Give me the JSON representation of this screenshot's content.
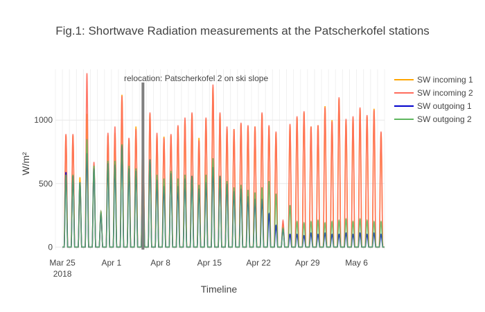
{
  "chart_data": {
    "type": "line",
    "title": "Fig.1: Shortwave Radiation measurements at the Patscherkofel stations",
    "xlabel": "Timeline",
    "ylabel": "W/m²",
    "x_start": "2018-03-25",
    "x_end": "2018-05-10",
    "xlim": [
      "2018-03-24",
      "2018-05-10"
    ],
    "ylim": [
      -20,
      1400
    ],
    "x_ticks": [
      {
        "date": "2018-03-25",
        "label": "Mar 25",
        "sublabel": "2018"
      },
      {
        "date": "2018-04-01",
        "label": "Apr 1",
        "sublabel": ""
      },
      {
        "date": "2018-04-08",
        "label": "Apr 8",
        "sublabel": ""
      },
      {
        "date": "2018-04-15",
        "label": "Apr 15",
        "sublabel": ""
      },
      {
        "date": "2018-04-22",
        "label": "Apr 22",
        "sublabel": ""
      },
      {
        "date": "2018-04-29",
        "label": "Apr 29",
        "sublabel": ""
      },
      {
        "date": "2018-05-06",
        "label": "May 6",
        "sublabel": ""
      }
    ],
    "y_ticks": [
      0,
      500,
      1000
    ],
    "grid": true,
    "legend_position": "top-right",
    "relocation": {
      "date": "2018-04-05",
      "label": "relocation: Patscherkofel 2 on ski slope",
      "color": "#808080"
    },
    "daily_peaks_note": "daily noon peak values (W/m²), zero at night",
    "dates": [
      "2018-03-25",
      "2018-03-26",
      "2018-03-27",
      "2018-03-28",
      "2018-03-29",
      "2018-03-30",
      "2018-03-31",
      "2018-04-01",
      "2018-04-02",
      "2018-04-03",
      "2018-04-04",
      "2018-04-05",
      "2018-04-06",
      "2018-04-07",
      "2018-04-08",
      "2018-04-09",
      "2018-04-10",
      "2018-04-11",
      "2018-04-12",
      "2018-04-13",
      "2018-04-14",
      "2018-04-15",
      "2018-04-16",
      "2018-04-17",
      "2018-04-18",
      "2018-04-19",
      "2018-04-20",
      "2018-04-21",
      "2018-04-22",
      "2018-04-23",
      "2018-04-24",
      "2018-04-25",
      "2018-04-26",
      "2018-04-27",
      "2018-04-28",
      "2018-04-29",
      "2018-04-30",
      "2018-05-01",
      "2018-05-02",
      "2018-05-03",
      "2018-05-04",
      "2018-05-05",
      "2018-05-06",
      "2018-05-07",
      "2018-05-08",
      "2018-05-09"
    ],
    "series": [
      {
        "name": "SW incoming 1",
        "color": "#FFA500",
        "values": [
          880,
          880,
          550,
          1050,
          650,
          270,
          880,
          900,
          1200,
          850,
          950,
          1000,
          1050,
          880,
          870,
          880,
          950,
          1000,
          1050,
          860,
          1010,
          1260,
          1050,
          930,
          930,
          970,
          950,
          950,
          1050,
          950,
          900,
          180,
          960,
          1020,
          1060,
          950,
          960,
          1110,
          1000,
          1170,
          1000,
          1020,
          1090,
          1030,
          1090,
          900
        ]
      },
      {
        "name": "SW incoming 2",
        "color": "#FF6C5C",
        "values": [
          890,
          890,
          440,
          1370,
          670,
          280,
          900,
          950,
          1190,
          860,
          930,
          1010,
          1060,
          900,
          860,
          890,
          960,
          1020,
          1060,
          840,
          1020,
          1280,
          1060,
          950,
          930,
          980,
          960,
          950,
          1060,
          960,
          910,
          210,
          970,
          1030,
          1070,
          950,
          960,
          1100,
          990,
          1180,
          1010,
          1030,
          1100,
          1040,
          1080,
          910
        ]
      },
      {
        "name": "SW outgoing 1",
        "color": "#0000CC",
        "values": [
          590,
          560,
          510,
          740,
          620,
          260,
          660,
          650,
          800,
          620,
          600,
          640,
          690,
          530,
          480,
          580,
          480,
          540,
          560,
          460,
          510,
          630,
          560,
          500,
          440,
          460,
          400,
          380,
          380,
          260,
          170,
          140,
          100,
          100,
          90,
          110,
          100,
          110,
          100,
          100,
          110,
          100,
          110,
          100,
          110,
          100
        ]
      },
      {
        "name": "SW outgoing 2",
        "color": "#5EB65E",
        "values": [
          570,
          570,
          510,
          850,
          640,
          280,
          680,
          680,
          810,
          640,
          620,
          650,
          690,
          570,
          540,
          600,
          540,
          570,
          560,
          490,
          570,
          700,
          560,
          520,
          470,
          490,
          450,
          430,
          470,
          520,
          420,
          150,
          330,
          200,
          190,
          200,
          210,
          190,
          200,
          210,
          220,
          200,
          220,
          210,
          200,
          200
        ]
      }
    ]
  }
}
